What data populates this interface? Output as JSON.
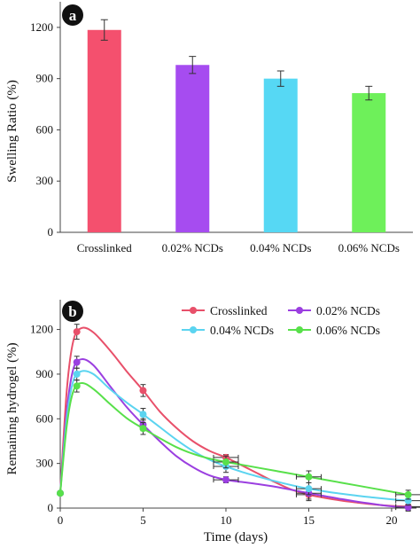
{
  "chart_data": [
    {
      "panel": "a",
      "type": "bar",
      "ylabel": "Swelling Ratio (%)",
      "ylim": [
        0,
        1350
      ],
      "yticks": [
        0,
        300,
        600,
        900,
        1200
      ],
      "categories": [
        "Crosslinked",
        "0.02% NCDs",
        "0.04% NCDs",
        "0.06% NCDs"
      ],
      "values": [
        1185,
        980,
        900,
        815
      ],
      "errors": [
        60,
        50,
        45,
        40
      ],
      "colors": [
        "#f4506e",
        "#a64cf0",
        "#56d8f4",
        "#6ef05a"
      ],
      "grid": false,
      "legend": "none"
    },
    {
      "panel": "b",
      "type": "line",
      "xlabel": "Time (days)",
      "ylabel": "Remaining hydrogel (%)",
      "xlim": [
        0,
        21.5
      ],
      "ylim": [
        0,
        1400
      ],
      "xticks": [
        0,
        5,
        10,
        15,
        20
      ],
      "yticks": [
        0,
        300,
        600,
        900,
        1200
      ],
      "legend": "top-right",
      "grid": false,
      "series": [
        {
          "name": "Crosslinked",
          "color": "#e8506a",
          "points": [
            [
              0,
              100
            ],
            [
              1,
              1185
            ],
            [
              5,
              790
            ],
            [
              10,
              340
            ],
            [
              15,
              90
            ],
            [
              21,
              10
            ]
          ],
          "errors": [
            0,
            50,
            40,
            20,
            40,
            30
          ],
          "curve": [
            [
              0,
              100
            ],
            [
              0.4,
              800
            ],
            [
              0.8,
              1130
            ],
            [
              1.3,
              1210
            ],
            [
              2,
              1180
            ],
            [
              3,
              1060
            ],
            [
              4,
              920
            ],
            [
              5,
              790
            ],
            [
              6,
              650
            ],
            [
              7,
              540
            ],
            [
              8,
              450
            ],
            [
              9,
              385
            ],
            [
              10,
              340
            ],
            [
              11,
              285
            ],
            [
              12,
              228
            ],
            [
              13,
              172
            ],
            [
              14,
              123
            ],
            [
              15,
              90
            ],
            [
              16,
              68
            ],
            [
              17,
              50
            ],
            [
              18,
              36
            ],
            [
              19,
              24
            ],
            [
              20,
              15
            ],
            [
              21,
              10
            ]
          ]
        },
        {
          "name": "0.02% NCDs",
          "color": "#9b3fe0",
          "points": [
            [
              0,
              100
            ],
            [
              1,
              980
            ],
            [
              5,
              560
            ],
            [
              10,
              190
            ],
            [
              15,
              100
            ],
            [
              21,
              5
            ]
          ],
          "errors": [
            0,
            40,
            40,
            20,
            40,
            20
          ],
          "curve": [
            [
              0,
              100
            ],
            [
              0.4,
              660
            ],
            [
              0.8,
              940
            ],
            [
              1.3,
              1000
            ],
            [
              2,
              960
            ],
            [
              3,
              820
            ],
            [
              4,
              680
            ],
            [
              5,
              560
            ],
            [
              6,
              450
            ],
            [
              7,
              350
            ],
            [
              8,
              275
            ],
            [
              9,
              220
            ],
            [
              10,
              190
            ],
            [
              11,
              175
            ],
            [
              12,
              160
            ],
            [
              13,
              143
            ],
            [
              14,
              122
            ],
            [
              15,
              100
            ],
            [
              16,
              80
            ],
            [
              17,
              60
            ],
            [
              18,
              42
            ],
            [
              19,
              26
            ],
            [
              20,
              12
            ],
            [
              21,
              5
            ]
          ]
        },
        {
          "name": "0.04% NCDs",
          "color": "#5bd4f0",
          "points": [
            [
              0,
              100
            ],
            [
              1,
              900
            ],
            [
              5,
              630
            ],
            [
              10,
              280
            ],
            [
              15,
              130
            ],
            [
              21,
              50
            ]
          ],
          "errors": [
            0,
            40,
            40,
            40,
            40,
            30
          ],
          "curve": [
            [
              0,
              100
            ],
            [
              0.4,
              610
            ],
            [
              0.8,
              860
            ],
            [
              1.3,
              920
            ],
            [
              2,
              900
            ],
            [
              3,
              800
            ],
            [
              4,
              710
            ],
            [
              5,
              630
            ],
            [
              6,
              545
            ],
            [
              7,
              460
            ],
            [
              8,
              385
            ],
            [
              9,
              325
            ],
            [
              10,
              280
            ],
            [
              11,
              242
            ],
            [
              12,
              210
            ],
            [
              13,
              180
            ],
            [
              14,
              153
            ],
            [
              15,
              130
            ],
            [
              16,
              112
            ],
            [
              17,
              96
            ],
            [
              18,
              82
            ],
            [
              19,
              70
            ],
            [
              20,
              59
            ],
            [
              21,
              50
            ]
          ]
        },
        {
          "name": "0.06% NCDs",
          "color": "#58e04a",
          "points": [
            [
              0,
              100
            ],
            [
              1,
              820
            ],
            [
              5,
              535
            ],
            [
              10,
              310
            ],
            [
              15,
              210
            ],
            [
              21,
              90
            ]
          ],
          "errors": [
            0,
            40,
            40,
            40,
            40,
            30
          ],
          "curve": [
            [
              0,
              100
            ],
            [
              0.4,
              560
            ],
            [
              0.8,
              790
            ],
            [
              1.3,
              840
            ],
            [
              2,
              800
            ],
            [
              3,
              700
            ],
            [
              4,
              605
            ],
            [
              5,
              535
            ],
            [
              6,
              470
            ],
            [
              7,
              410
            ],
            [
              8,
              365
            ],
            [
              9,
              333
            ],
            [
              10,
              310
            ],
            [
              11,
              290
            ],
            [
              12,
              270
            ],
            [
              13,
              250
            ],
            [
              14,
              230
            ],
            [
              15,
              210
            ],
            [
              16,
              190
            ],
            [
              17,
              170
            ],
            [
              18,
              150
            ],
            [
              19,
              130
            ],
            [
              20,
              110
            ],
            [
              21,
              90
            ]
          ]
        }
      ]
    }
  ]
}
